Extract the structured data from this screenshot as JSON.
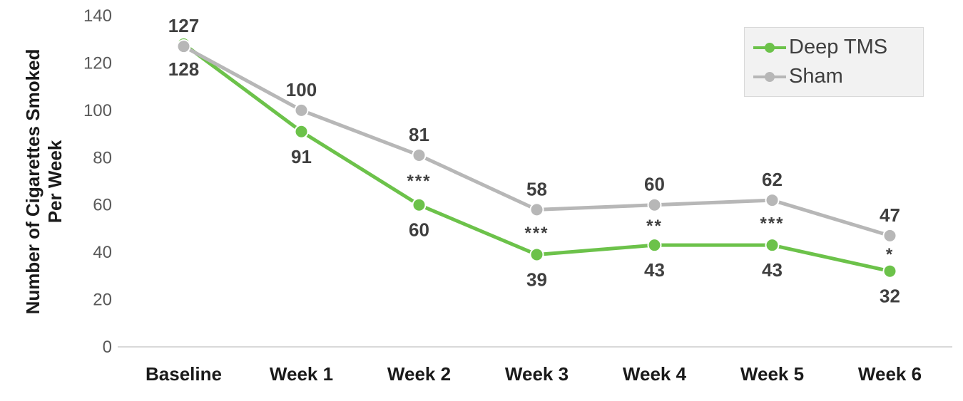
{
  "chart_data": {
    "type": "line",
    "title": "",
    "ylabel": "Number of Cigarettes Smoked Per Week",
    "ylabel_lines": [
      "Number of Cigarettes Smoked",
      "Per Week"
    ],
    "categories": [
      "Baseline",
      "Week 1",
      "Week 2",
      "Week 3",
      "Week 4",
      "Week 5",
      "Week 6"
    ],
    "series": [
      {
        "name": "Deep TMS",
        "color": "#6CC24A",
        "values": [
          128,
          91,
          60,
          39,
          43,
          43,
          32
        ],
        "label_position": "below"
      },
      {
        "name": "Sham",
        "color": "#B7B7B7",
        "values": [
          127,
          100,
          81,
          58,
          60,
          62,
          47
        ],
        "label_position": "above"
      }
    ],
    "significance": [
      "",
      "",
      "***",
      "***",
      "**",
      "***",
      "*"
    ],
    "ylim": [
      0,
      140
    ],
    "yticks": [
      0,
      20,
      40,
      60,
      80,
      100,
      120,
      140
    ],
    "legend_position": "top-right",
    "grid": false,
    "colors": {
      "axis_line": "#d9d9d9",
      "tick_label": "#595959",
      "category_label": "#1a1a1a",
      "data_label": "#3f3f3f"
    }
  }
}
